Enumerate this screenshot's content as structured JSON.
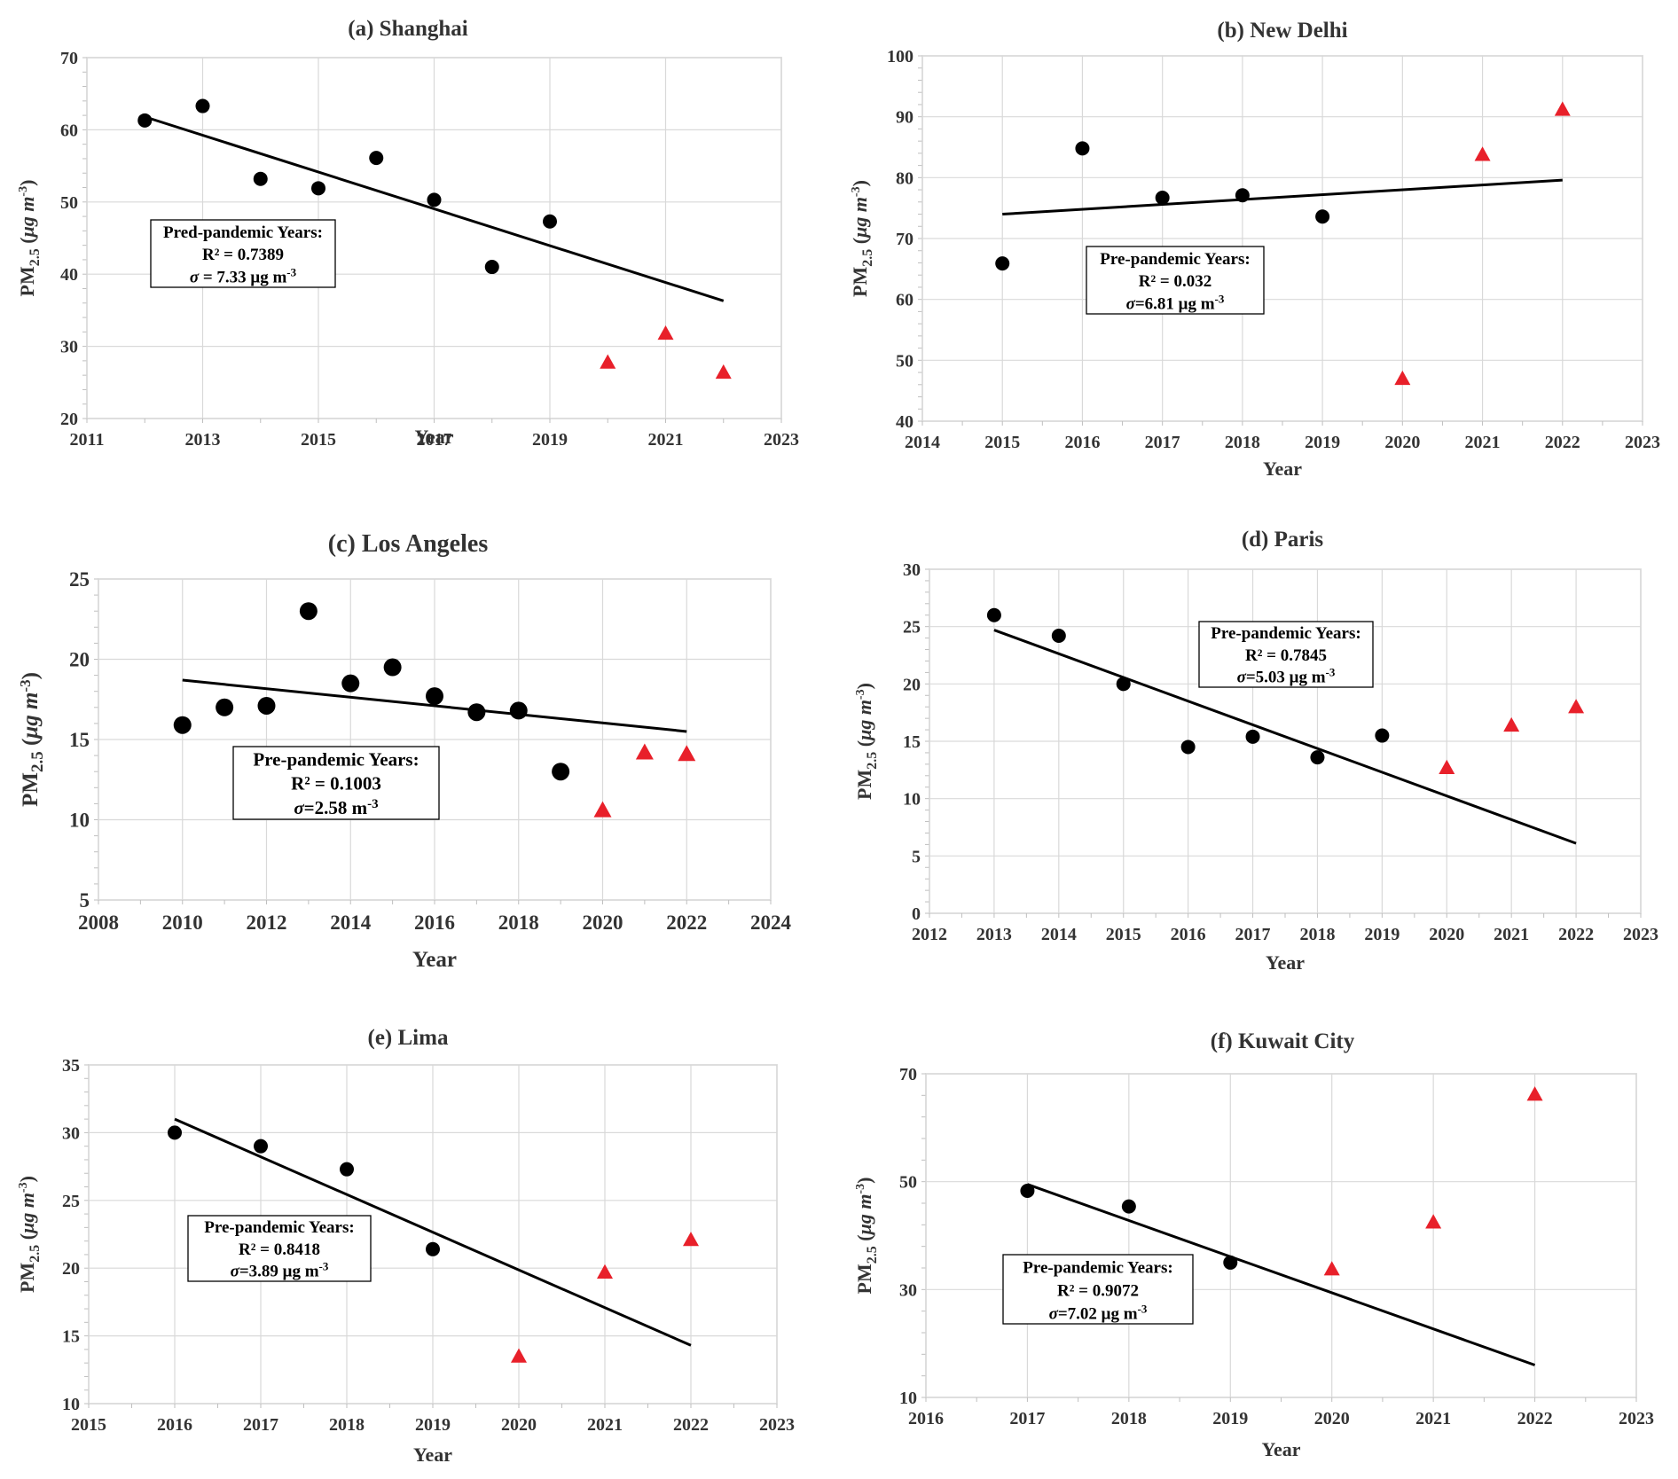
{
  "colors": {
    "pre": "#000000",
    "post": "#e8202a",
    "trend": "#000000"
  },
  "figure": {
    "ylabel_main": "PM",
    "ylabel_sub": "2.5",
    "ylabel_rest": " (",
    "ylabel_mu": "μg m",
    "ylabel_sup": "-3",
    "ylabel_close": ")",
    "xlabel": "Year"
  },
  "chart_data": [
    {
      "type": "scatter",
      "title": "(a) Shanghai",
      "xlim": [
        2011,
        2023
      ],
      "xticks": [
        2011,
        2013,
        2015,
        2017,
        2019,
        2021,
        2023
      ],
      "ylim": [
        20,
        70
      ],
      "yticks": [
        20,
        30,
        40,
        50,
        60,
        70
      ],
      "series": [
        {
          "x": [
            2012,
            2013,
            2014,
            2015,
            2016,
            2017,
            2018,
            2019
          ],
          "y": [
            61.3,
            63.3,
            53.2,
            51.9,
            56.1,
            50.3,
            41.0,
            47.3
          ]
        },
        {
          "x": [
            2020,
            2021,
            2022
          ],
          "y": [
            27.8,
            31.8,
            26.4
          ]
        }
      ],
      "trend": {
        "x": [
          2012,
          2022
        ],
        "y": [
          61.8,
          36.3
        ]
      },
      "annotation": [
        "Pred-pandemic Years:",
        "R² = 0.7389",
        "σ = 7.33 μg m",
        "-3"
      ]
    },
    {
      "type": "scatter",
      "title": "(b) New Delhi",
      "xlim": [
        2014,
        2023
      ],
      "xticks": [
        2014,
        2015,
        2016,
        2017,
        2018,
        2019,
        2020,
        2021,
        2022,
        2023
      ],
      "ylim": [
        40,
        100
      ],
      "yticks": [
        40,
        50,
        60,
        70,
        80,
        90,
        100
      ],
      "series": [
        {
          "x": [
            2015,
            2016,
            2017,
            2018,
            2019
          ],
          "y": [
            65.9,
            84.8,
            76.7,
            77.1,
            73.6
          ]
        },
        {
          "x": [
            2020,
            2021,
            2022
          ],
          "y": [
            47.0,
            83.8,
            91.2
          ]
        }
      ],
      "trend": {
        "x": [
          2015,
          2022
        ],
        "y": [
          74.0,
          79.6
        ]
      },
      "annotation": [
        "Pre-pandemic Years:",
        "R² = 0.032",
        "σ=6.81 μg m",
        "-3"
      ]
    },
    {
      "type": "scatter",
      "title": "(c) Los Angeles",
      "xlim": [
        2008,
        2024
      ],
      "xticks": [
        2008,
        2010,
        2012,
        2014,
        2016,
        2018,
        2020,
        2022,
        2024
      ],
      "ylim": [
        5,
        25
      ],
      "yticks": [
        5,
        10,
        15,
        20,
        25
      ],
      "series": [
        {
          "x": [
            2010,
            2011,
            2012,
            2013,
            2014,
            2015,
            2016,
            2017,
            2018,
            2019
          ],
          "y": [
            15.9,
            17.0,
            17.1,
            23.0,
            18.5,
            19.5,
            17.7,
            16.7,
            16.8,
            13.0
          ]
        },
        {
          "x": [
            2020,
            2021,
            2022
          ],
          "y": [
            10.6,
            14.2,
            14.1
          ]
        }
      ],
      "trend": {
        "x": [
          2010,
          2022
        ],
        "y": [
          18.7,
          15.5
        ]
      },
      "annotation": [
        "Pre-pandemic Years:",
        "R² = 0.1003",
        "σ=2.58      m",
        "-3"
      ]
    },
    {
      "type": "scatter",
      "title": "(d) Paris",
      "xlim": [
        2012,
        2023
      ],
      "xticks": [
        2012,
        2013,
        2014,
        2015,
        2016,
        2017,
        2018,
        2019,
        2020,
        2021,
        2022,
        2023
      ],
      "ylim": [
        0,
        30
      ],
      "yticks": [
        0,
        5,
        10,
        15,
        20,
        25,
        30
      ],
      "series": [
        {
          "x": [
            2013,
            2014,
            2015,
            2016,
            2017,
            2018,
            2019
          ],
          "y": [
            26.0,
            24.2,
            20.0,
            14.5,
            15.4,
            13.6,
            15.5
          ]
        },
        {
          "x": [
            2020,
            2021,
            2022
          ],
          "y": [
            12.7,
            16.4,
            18.0
          ]
        }
      ],
      "trend": {
        "x": [
          2013,
          2022
        ],
        "y": [
          24.7,
          6.1
        ]
      },
      "annotation": [
        "Pre-pandemic Years:",
        "R² = 0.7845",
        "σ=5.03 μg m",
        "-3"
      ]
    },
    {
      "type": "scatter",
      "title": "(e) Lima",
      "xlim": [
        2015,
        2023
      ],
      "xticks": [
        2015,
        2016,
        2017,
        2018,
        2019,
        2020,
        2021,
        2022,
        2023
      ],
      "ylim": [
        10,
        35
      ],
      "yticks": [
        10,
        15,
        20,
        25,
        30,
        35
      ],
      "series": [
        {
          "x": [
            2016,
            2017,
            2018,
            2019
          ],
          "y": [
            30.0,
            29.0,
            27.3,
            21.4
          ]
        },
        {
          "x": [
            2020,
            2021,
            2022
          ],
          "y": [
            13.5,
            19.7,
            22.1
          ]
        }
      ],
      "trend": {
        "x": [
          2016,
          2022
        ],
        "y": [
          31.0,
          14.3
        ]
      },
      "annotation": [
        "Pre-pandemic Years:",
        "R² = 0.8418",
        "σ=3.89 μg m",
        "-3"
      ]
    },
    {
      "type": "scatter",
      "title": "(f) Kuwait City",
      "xlim": [
        2016,
        2023
      ],
      "xticks": [
        2016,
        2017,
        2018,
        2019,
        2020,
        2021,
        2022,
        2023
      ],
      "ylim": [
        10,
        70
      ],
      "yticks": [
        10,
        30,
        50,
        70
      ],
      "series": [
        {
          "x": [
            2017,
            2018,
            2019
          ],
          "y": [
            48.3,
            45.4,
            35.0
          ]
        },
        {
          "x": [
            2020,
            2021,
            2022
          ],
          "y": [
            33.8,
            42.5,
            66.2
          ]
        }
      ],
      "trend": {
        "x": [
          2017,
          2022
        ],
        "y": [
          49.5,
          16.0
        ]
      },
      "annotation": [
        "Pre-pandemic Years:",
        "R² = 0.9072",
        "σ=7.02 μg m",
        "-3"
      ]
    }
  ]
}
